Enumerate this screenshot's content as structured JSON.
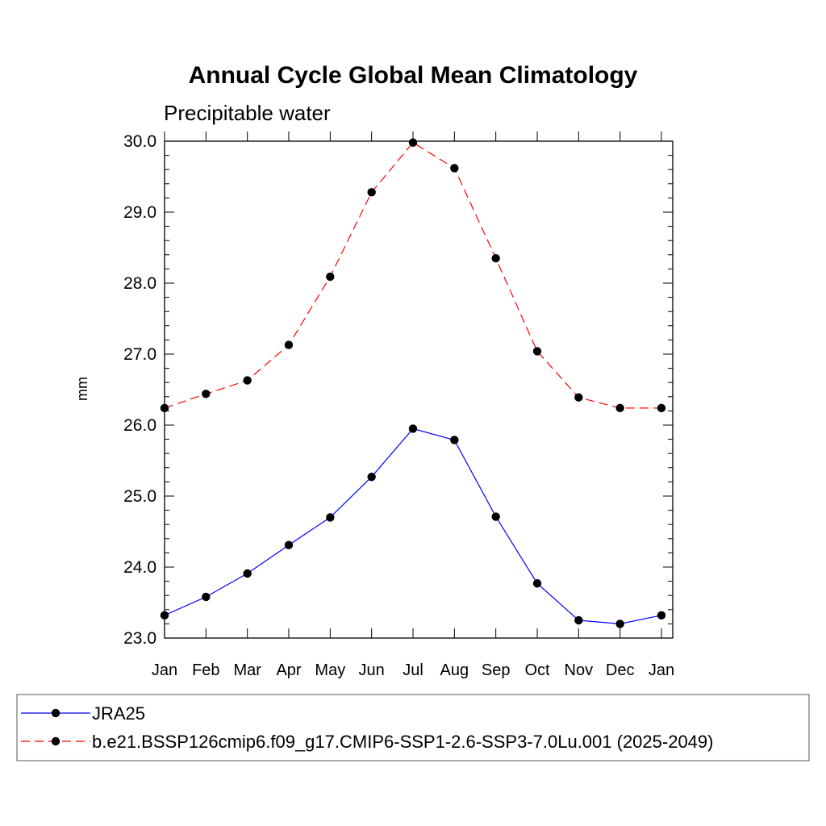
{
  "chart_data": {
    "type": "line",
    "title": "Annual Cycle Global Mean Climatology",
    "subtitle": "Precipitable water",
    "xlabel": "",
    "ylabel": "mm",
    "categories": [
      "Jan",
      "Feb",
      "Mar",
      "Apr",
      "May",
      "Jun",
      "Jul",
      "Aug",
      "Sep",
      "Oct",
      "Nov",
      "Dec",
      "Jan"
    ],
    "ylim": [
      23.0,
      30.0
    ],
    "yticks": [
      "23.0",
      "24.0",
      "25.0",
      "26.0",
      "27.0",
      "28.0",
      "29.0",
      "30.0"
    ],
    "grid": false,
    "legend_position": "bottom",
    "series": [
      {
        "name": "JRA25",
        "color": "#0000ff",
        "line_style": "solid",
        "marker": "filled-circle",
        "values": [
          23.32,
          23.58,
          23.91,
          24.31,
          24.7,
          25.27,
          25.95,
          25.79,
          24.71,
          23.77,
          23.25,
          23.2,
          23.32
        ]
      },
      {
        "name": "b.e21.BSSP126cmip6.f09_g17.CMIP6-SSP1-2.6-SSP3-7.0Lu.001 (2025-2049)",
        "color": "#ff0000",
        "line_style": "dashed",
        "marker": "filled-circle",
        "values": [
          26.24,
          26.44,
          26.63,
          27.13,
          28.09,
          29.28,
          29.98,
          29.62,
          28.35,
          27.04,
          26.39,
          26.24,
          26.24
        ]
      }
    ]
  }
}
